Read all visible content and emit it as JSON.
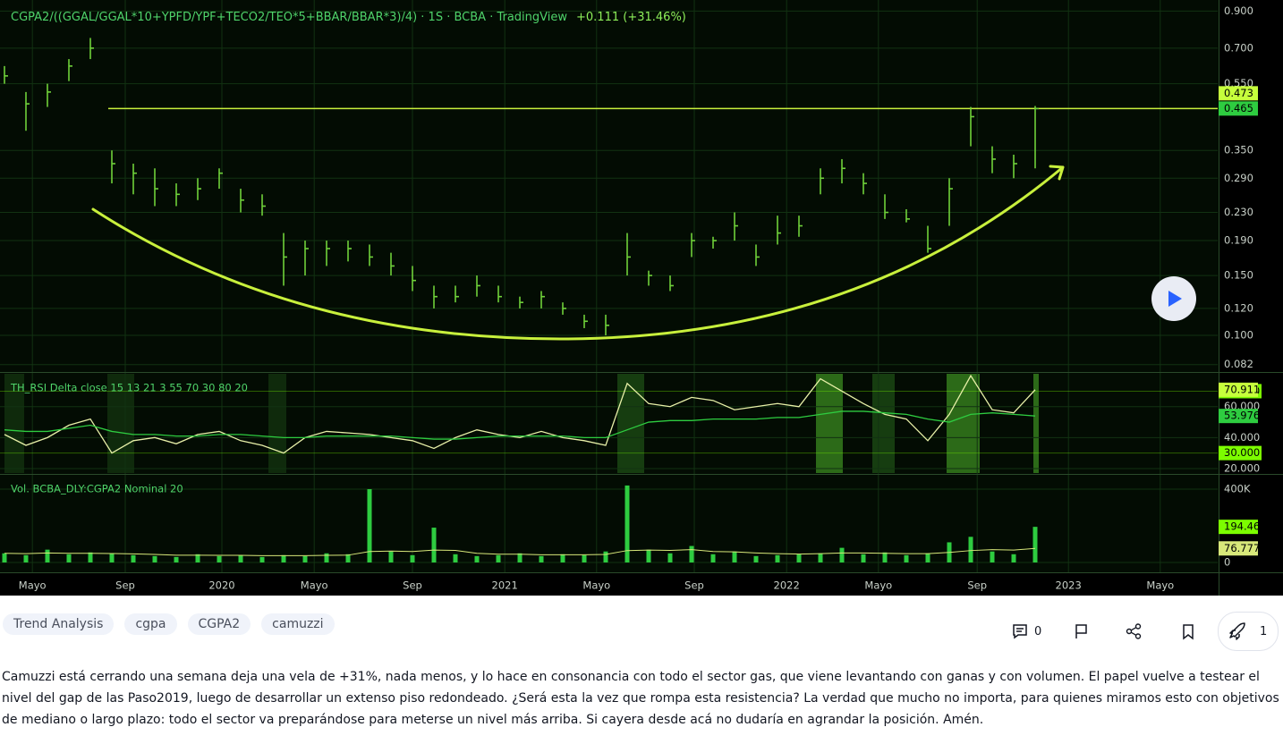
{
  "chart_data": [
    {
      "type": "ohlc",
      "title": "CGPA2/((GGAL/GGAL*10+YPFD/YPF+TECO2/TEO*5+BBAR/BBAR*3)/4) · 1S · BCBA · TradingView",
      "change": "+0.111 (+31.46%)",
      "color": "#6fd13a",
      "x": [
        0,
        4,
        8,
        12,
        16,
        20,
        24,
        28,
        32,
        36,
        40,
        44,
        48,
        52,
        56,
        60,
        64,
        68,
        72,
        76,
        80,
        84,
        88,
        92,
        96,
        100,
        104,
        108,
        112,
        116,
        120,
        124,
        128,
        132,
        136,
        140,
        144,
        148,
        152,
        156,
        160,
        164,
        168,
        172,
        176,
        180,
        184,
        188,
        192
      ],
      "high": [
        0.62,
        0.52,
        0.55,
        0.65,
        0.75,
        0.35,
        0.32,
        0.31,
        0.28,
        0.29,
        0.31,
        0.27,
        0.26,
        0.2,
        0.19,
        0.19,
        0.19,
        0.185,
        0.175,
        0.16,
        0.14,
        0.14,
        0.15,
        0.14,
        0.13,
        0.135,
        0.125,
        0.115,
        0.115,
        0.2,
        0.155,
        0.15,
        0.2,
        0.195,
        0.23,
        0.185,
        0.225,
        0.225,
        0.31,
        0.33,
        0.3,
        0.26,
        0.235,
        0.21,
        0.29,
        0.47,
        0.36,
        0.34,
        0.473
      ],
      "low": [
        0.55,
        0.4,
        0.47,
        0.56,
        0.65,
        0.28,
        0.26,
        0.24,
        0.24,
        0.25,
        0.27,
        0.23,
        0.225,
        0.14,
        0.15,
        0.16,
        0.165,
        0.16,
        0.15,
        0.135,
        0.12,
        0.125,
        0.13,
        0.125,
        0.12,
        0.12,
        0.115,
        0.105,
        0.1,
        0.15,
        0.14,
        0.135,
        0.17,
        0.18,
        0.19,
        0.16,
        0.185,
        0.195,
        0.26,
        0.28,
        0.26,
        0.22,
        0.215,
        0.175,
        0.21,
        0.36,
        0.3,
        0.29,
        0.31
      ],
      "close": [
        0.58,
        0.48,
        0.52,
        0.62,
        0.7,
        0.32,
        0.3,
        0.27,
        0.26,
        0.27,
        0.3,
        0.25,
        0.24,
        0.17,
        0.18,
        0.18,
        0.18,
        0.17,
        0.16,
        0.145,
        0.13,
        0.13,
        0.14,
        0.13,
        0.125,
        0.13,
        0.12,
        0.11,
        0.107,
        0.17,
        0.15,
        0.14,
        0.19,
        0.19,
        0.21,
        0.17,
        0.2,
        0.21,
        0.29,
        0.31,
        0.28,
        0.23,
        0.22,
        0.18,
        0.27,
        0.44,
        0.33,
        0.32,
        0.465
      ],
      "log_scale": true,
      "ylim": [
        0.078,
        0.97
      ],
      "yticks": [
        {
          "value": 0.9,
          "label": "0.900"
        },
        {
          "value": 0.7,
          "label": "0.700"
        },
        {
          "value": 0.55,
          "label": "0.550"
        },
        {
          "value": 0.35,
          "label": "0.350"
        },
        {
          "value": 0.29,
          "label": "0.290"
        },
        {
          "value": 0.23,
          "label": "0.230"
        },
        {
          "value": 0.19,
          "label": "0.190"
        },
        {
          "value": 0.15,
          "label": "0.150"
        },
        {
          "value": 0.12,
          "label": "0.120"
        },
        {
          "value": 0.1,
          "label": "0.100"
        },
        0.082
      ],
      "xlim": [
        0,
        226
      ],
      "xticks": [
        {
          "value": 5.2,
          "label": "Mayo"
        },
        {
          "value": 22.5,
          "label": "Sep"
        },
        {
          "value": 40.5,
          "label": "2020"
        },
        {
          "value": 57.7,
          "label": "Mayo"
        },
        {
          "value": 76,
          "label": "Sep"
        },
        {
          "value": 93.2,
          "label": "2021"
        },
        {
          "value": 110.3,
          "label": "Mayo"
        },
        {
          "value": 128.5,
          "label": "Sep"
        },
        {
          "value": 145.7,
          "label": "2022"
        },
        {
          "value": 162.8,
          "label": "Mayo"
        },
        {
          "value": 181.2,
          "label": "Sep"
        },
        {
          "value": 198.2,
          "label": "2023"
        },
        {
          "value": 215.3,
          "label": "Mayo"
        }
      ],
      "level": 0.465,
      "level_color": "#c8f03c",
      "axis_labels": [
        {
          "value": 0.473,
          "color": "#c6ff3c"
        },
        {
          "value": 0.465,
          "color": "#2ecc40"
        }
      ]
    },
    {
      "type": "line",
      "title": "TH_RSI Delta close 15 13 21 3 55 70 30 80 20",
      "x": [
        0,
        4,
        8,
        12,
        16,
        20,
        24,
        28,
        32,
        36,
        40,
        44,
        48,
        52,
        56,
        60,
        64,
        68,
        72,
        76,
        80,
        84,
        88,
        92,
        96,
        100,
        104,
        108,
        112,
        116,
        120,
        124,
        128,
        132,
        136,
        140,
        144,
        148,
        152,
        156,
        160,
        164,
        168,
        172,
        176,
        180,
        184,
        188,
        192
      ],
      "series": [
        {
          "color": "#e8f0a8",
          "values": [
            42,
            35,
            40,
            48,
            52,
            30,
            38,
            40,
            36,
            42,
            44,
            38,
            35,
            30,
            40,
            44,
            43,
            42,
            40,
            38,
            33,
            40,
            45,
            42,
            40,
            44,
            40,
            38,
            35,
            75,
            62,
            60,
            66,
            64,
            58,
            60,
            62,
            60,
            78,
            70,
            62,
            55,
            52,
            38,
            55,
            80,
            58,
            56,
            70.911
          ]
        },
        {
          "color": "#2ecc40",
          "values": [
            45,
            44,
            44,
            46,
            48,
            44,
            42,
            42,
            41,
            41,
            42,
            42,
            41,
            40,
            40,
            41,
            41,
            41,
            41,
            40,
            39,
            39,
            40,
            41,
            41,
            41,
            41,
            40,
            40,
            45,
            50,
            51,
            51,
            52,
            52,
            52,
            53,
            53,
            55,
            57,
            57,
            56,
            55,
            52,
            50,
            55,
            56,
            55,
            53.976
          ]
        }
      ],
      "ylim": [
        16.5,
        82.4
      ],
      "yticks": [
        {
          "value": 20,
          "label": "20.000"
        },
        {
          "value": 40,
          "label": "40.000"
        },
        {
          "value": 60,
          "label": "60.000"
        }
      ],
      "xlim": [
        0,
        226
      ],
      "levels": [
        {
          "value": 70,
          "label": "70.000",
          "color": "#7cfc00"
        },
        {
          "value": 30,
          "label": "30.000",
          "color": "#7cfc00"
        }
      ],
      "axis_labels": [
        {
          "value": 70.911,
          "color": "#c6ff3c"
        },
        {
          "value": 53.976,
          "color": "#2ecc40"
        }
      ]
    },
    {
      "type": "bar",
      "title": "Vol. BCBA_DLY:CGPA2 Nominal 20",
      "x": [
        0,
        4,
        8,
        12,
        16,
        20,
        24,
        28,
        32,
        36,
        40,
        44,
        48,
        52,
        56,
        60,
        64,
        68,
        72,
        76,
        80,
        84,
        88,
        92,
        96,
        100,
        104,
        108,
        112,
        116,
        120,
        124,
        128,
        132,
        136,
        140,
        144,
        148,
        152,
        156,
        160,
        164,
        168,
        172,
        176,
        180,
        184,
        188,
        192
      ],
      "values": [
        50000,
        40000,
        70000,
        45000,
        55000,
        50000,
        40000,
        35000,
        30000,
        45000,
        35000,
        40000,
        30000,
        40000,
        35000,
        50000,
        45000,
        400000,
        60000,
        40000,
        190000,
        45000,
        35000,
        40000,
        50000,
        35000,
        45000,
        40000,
        60000,
        420000,
        70000,
        50000,
        90000,
        45000,
        60000,
        35000,
        40000,
        45000,
        50000,
        80000,
        45000,
        55000,
        40000,
        50000,
        110000,
        140000,
        60000,
        45000,
        194466
      ],
      "color": "#2ecc40",
      "moving_average": {
        "color": "#d8e87a",
        "values": [
          50000,
          48000,
          52000,
          50000,
          50000,
          49000,
          47000,
          44000,
          40000,
          40000,
          39000,
          39000,
          37000,
          37000,
          37000,
          39000,
          40000,
          60000,
          62000,
          60000,
          68000,
          66000,
          50000,
          45000,
          45000,
          42000,
          42000,
          42000,
          44000,
          65000,
          68000,
          66000,
          70000,
          60000,
          58000,
          52000,
          48000,
          46000,
          48000,
          52000,
          52000,
          50000,
          48000,
          48000,
          55000,
          65000,
          70000,
          68000,
          76777
        ]
      },
      "ylim": [
        -53600,
        483000
      ],
      "yticks": [
        {
          "value": 400000,
          "label": "400K"
        },
        0
      ],
      "xlim": [
        0,
        226
      ],
      "axis_labels": [
        {
          "value": 194466,
          "label": "194.466K",
          "color": "#7cfc00"
        },
        {
          "value": 76777,
          "label": "76.777K",
          "color": "#d8e87a"
        }
      ]
    }
  ],
  "tags": [
    "Trend Analysis",
    "cgpa",
    "CGPA2",
    "camuzzi"
  ],
  "actions": {
    "comments": 0,
    "boosts": 1
  },
  "description": "Camuzzi está cerrando una semana deja una vela de +31%, nada menos, y lo hace en consonancia con todo el sector gas, que viene levantando con ganas y con volumen. El papel vuelve a testear el nivel del gap de las Paso2019, luego de desarrollar un extenso piso redondeado. ¿Será esta la vez que rompa esta resistencia? La verdad que mucho no importa, para quienes miramos esto con objetivos de mediano o largo plazo: todo el sector va preparándose para meterse un nivel más arriba. Si cayera desde acá no dudaría en agrandar la posición. Amén."
}
